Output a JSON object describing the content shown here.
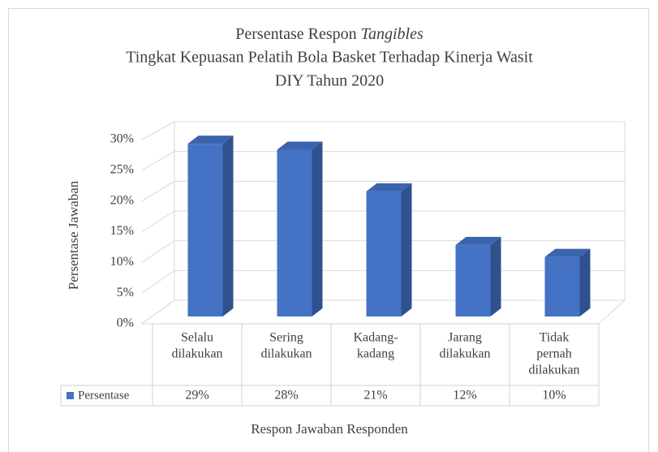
{
  "chart_data": {
    "type": "bar3d",
    "title": [
      "Persentase Respon",
      "Tangibles",
      "Tingkat Kepuasan Pelatih Bola Basket Terhadap Kinerja Wasit",
      "DIY Tahun 2020"
    ],
    "x_label": "Respon Jawaban Responden",
    "y_label": "Persentase Jawaban",
    "categories": [
      [
        "Selalu",
        "dilakukan"
      ],
      [
        "Sering",
        "dilakukan"
      ],
      [
        "Kadang-",
        "kadang"
      ],
      [
        "Jarang",
        "dilakukan"
      ],
      [
        "Tidak",
        "pernah",
        "dilakukan"
      ]
    ],
    "series": [
      {
        "name": "Persentase",
        "color": "#4472c4",
        "values": [
          29,
          28,
          21,
          12,
          10
        ],
        "value_labels": [
          "29%",
          "28%",
          "21%",
          "12%",
          "10%"
        ]
      }
    ],
    "ylim": [
      0,
      30
    ],
    "yticks": [
      {
        "value": 0,
        "label": "0%"
      },
      {
        "value": 5,
        "label": "5%"
      },
      {
        "value": 10,
        "label": "10%"
      },
      {
        "value": 15,
        "label": "15%"
      },
      {
        "value": 20,
        "label": "20%"
      },
      {
        "value": 25,
        "label": "25%"
      },
      {
        "value": 30,
        "label": "30%"
      }
    ],
    "grid": true,
    "data_table": true
  }
}
